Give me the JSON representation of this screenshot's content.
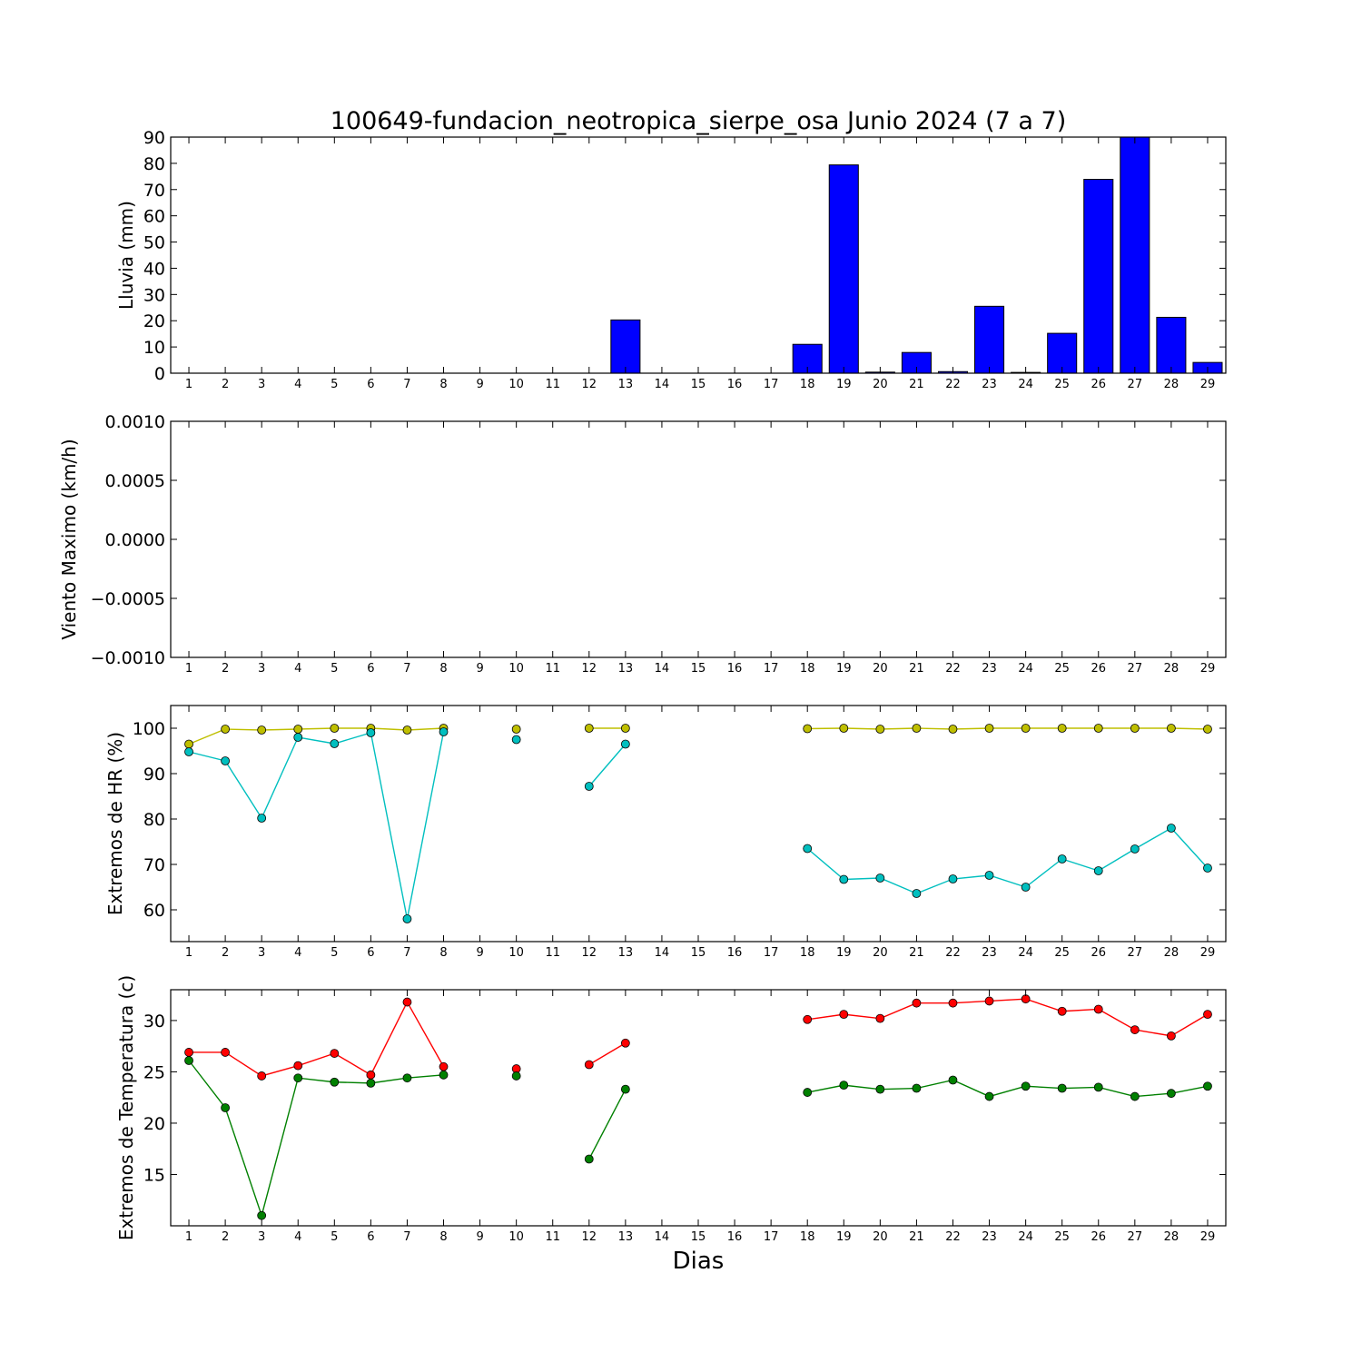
{
  "chart_data": {
    "title": "100649-fundacion_neotropica_sierpe_osa Junio 2024  (7 a 7)",
    "xlabel": "Dias",
    "x": [
      1,
      2,
      3,
      4,
      5,
      6,
      7,
      8,
      9,
      10,
      11,
      12,
      13,
      14,
      15,
      16,
      17,
      18,
      19,
      20,
      21,
      22,
      23,
      24,
      25,
      26,
      27,
      28,
      29
    ],
    "xlim": [
      0.5,
      29.5
    ],
    "panels": [
      {
        "type": "bar",
        "ylabel": "Lluvia (mm)",
        "ylim": [
          0,
          90
        ],
        "yticks": [
          0,
          10,
          20,
          30,
          40,
          50,
          60,
          70,
          80,
          90
        ],
        "ytick_labels": [
          "0",
          "10",
          "20",
          "30",
          "40",
          "50",
          "60",
          "70",
          "80",
          "90"
        ],
        "series": [
          {
            "color": "#0000ff",
            "values": [
              0,
              0,
              0,
              0,
              0,
              0,
              0,
              0,
              0,
              0,
              0,
              0,
              20.3,
              0,
              0,
              0,
              0,
              11,
              79.4,
              0.4,
              7.9,
              0.6,
              25.5,
              0.3,
              15.2,
              73.9,
              90,
              21.3,
              4.1
            ]
          }
        ]
      },
      {
        "type": "line",
        "ylabel": "Viento Maximo (km/h)",
        "ylim": [
          -0.001,
          0.001
        ],
        "yticks": [
          -0.001,
          -0.0005,
          0,
          0.0005,
          0.001
        ],
        "ytick_labels": [
          "−0.0010",
          "−0.0005",
          "0.0000",
          "0.0005",
          "0.0010"
        ],
        "series": []
      },
      {
        "type": "line",
        "ylabel": "Extremos de HR (%)",
        "ylim": [
          53,
          105
        ],
        "yticks": [
          60,
          70,
          80,
          90,
          100
        ],
        "ytick_labels": [
          "60",
          "70",
          "80",
          "90",
          "100"
        ],
        "series": [
          {
            "color": "#bfbf00",
            "values": [
              96.5,
              99.8,
              99.6,
              99.8,
              100,
              100,
              99.6,
              100,
              null,
              99.8,
              null,
              100,
              100,
              null,
              null,
              null,
              null,
              99.9,
              100,
              99.8,
              100,
              99.8,
              100,
              100,
              100,
              100,
              100,
              100,
              99.8
            ]
          },
          {
            "color": "#00bfbf",
            "values": [
              94.8,
              92.8,
              80.2,
              98,
              96.6,
              99,
              58,
              99.2,
              null,
              97.5,
              null,
              87.2,
              96.5,
              null,
              null,
              null,
              null,
              73.5,
              66.7,
              67,
              63.6,
              66.8,
              67.6,
              65,
              71.2,
              68.6,
              73.4,
              78,
              69.2
            ]
          }
        ]
      },
      {
        "type": "line",
        "ylabel": "Extremos de Temperatura (c)",
        "ylim": [
          10,
          33
        ],
        "yticks": [
          15,
          20,
          25,
          30
        ],
        "ytick_labels": [
          "15",
          "20",
          "25",
          "30"
        ],
        "series": [
          {
            "color": "#ff0000",
            "values": [
              26.9,
              26.9,
              24.6,
              25.6,
              26.8,
              24.7,
              31.8,
              25.5,
              null,
              25.3,
              null,
              25.7,
              27.8,
              null,
              null,
              null,
              null,
              30.1,
              30.6,
              30.2,
              31.7,
              31.7,
              31.9,
              32.1,
              30.9,
              31.1,
              29.1,
              28.5,
              30.6
            ]
          },
          {
            "color": "#008000",
            "values": [
              26.1,
              21.5,
              11,
              24.4,
              24,
              23.9,
              24.4,
              24.7,
              null,
              24.6,
              null,
              16.5,
              23.3,
              null,
              null,
              null,
              null,
              23,
              23.7,
              23.3,
              23.4,
              24.2,
              22.6,
              23.6,
              23.4,
              23.5,
              22.6,
              22.9,
              23.6
            ]
          }
        ]
      }
    ]
  }
}
